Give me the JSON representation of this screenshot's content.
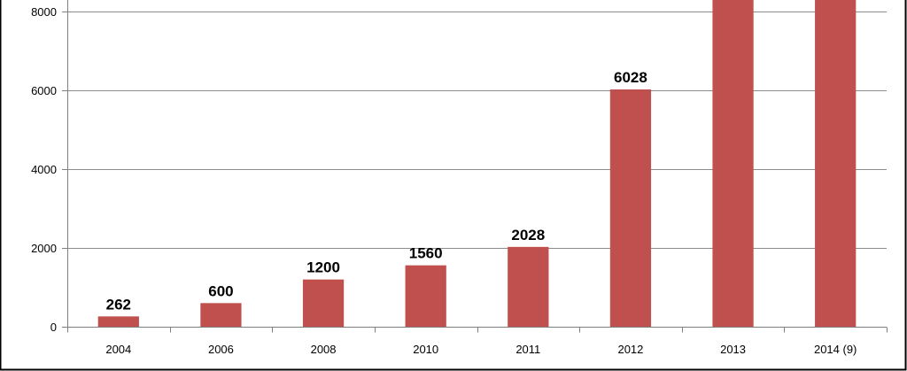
{
  "chart_data": {
    "type": "bar",
    "title": "",
    "xlabel": "",
    "ylabel": "",
    "categories": [
      "2004",
      "2006",
      "2008",
      "2010",
      "2011",
      "2012",
      "2013",
      "2014 (9)"
    ],
    "values": [
      262,
      600,
      1200,
      1560,
      2028,
      6028,
      9000,
      9000
    ],
    "data_labels": [
      "262",
      "600",
      "1200",
      "1560",
      "2028",
      "6028",
      "",
      ""
    ],
    "yticks": [
      "0",
      "2000",
      "4000",
      "6000",
      "8000"
    ],
    "ytick_values": [
      0,
      2000,
      4000,
      6000,
      8000
    ],
    "ylim": [
      0,
      8300
    ],
    "grid": true,
    "legend": "none",
    "colors": {
      "bar": "#c0504d",
      "grid": "#8c8c8c",
      "axis": "#7f7f7f",
      "frame": "#000000"
    }
  }
}
